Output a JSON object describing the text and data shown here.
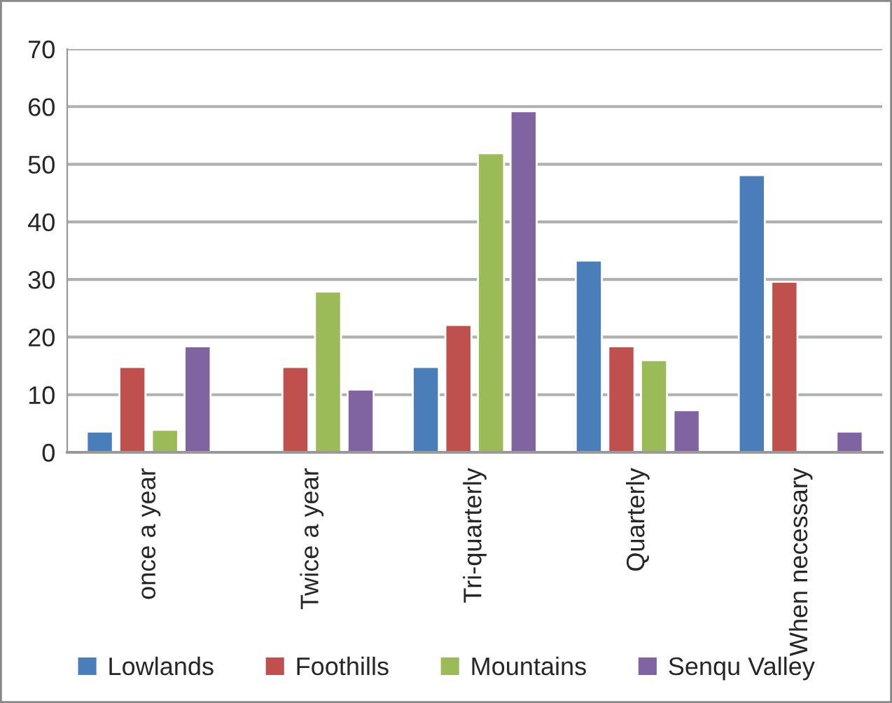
{
  "chart_data": {
    "type": "bar",
    "categories": [
      "once a year",
      "Twice a year",
      "Tri-quarterly",
      "Quarterly",
      "When necessary"
    ],
    "series": [
      {
        "name": "Lowlands",
        "color": "#4a7ebb",
        "values": [
          3.6,
          null,
          14.8,
          33.3,
          48.1
        ]
      },
      {
        "name": "Foothills",
        "color": "#c0504d",
        "values": [
          14.8,
          14.8,
          22.1,
          18.4,
          29.6
        ]
      },
      {
        "name": "Mountains",
        "color": "#9bbb59",
        "values": [
          3.9,
          27.9,
          51.9,
          16.0,
          null
        ]
      },
      {
        "name": "Senqu Valley",
        "color": "#8064a2",
        "values": [
          18.4,
          10.9,
          59.2,
          7.3,
          3.6
        ]
      }
    ],
    "ylim": [
      0,
      70
    ],
    "yticks": [
      0,
      10,
      20,
      30,
      40,
      50,
      60,
      70
    ],
    "grid": "y",
    "legend": "bottom"
  }
}
